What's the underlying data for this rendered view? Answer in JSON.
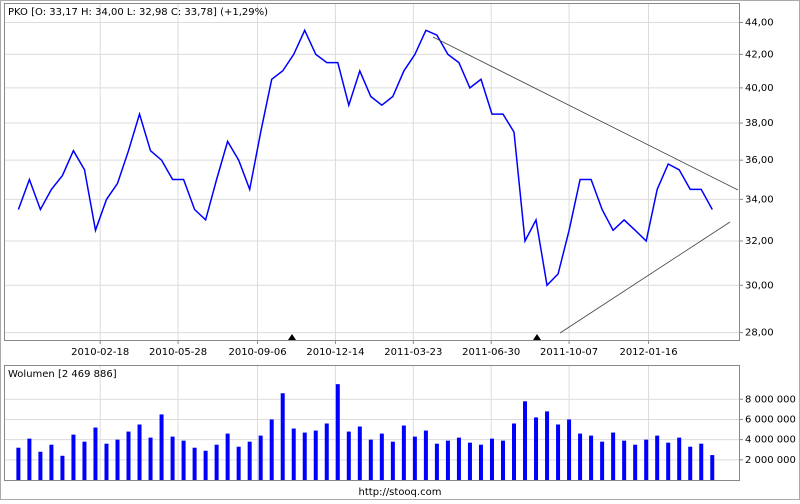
{
  "chart_data": [
    {
      "type": "line",
      "title": "PKO [O: 33,17  H: 34,00  L: 32,98  C: 33,78] (+1,29%)",
      "log_scale": true,
      "grid": true,
      "xlim": [
        "2009-10-20",
        "2012-05-10"
      ],
      "xticks": [
        "2010-02-18",
        "2010-05-28",
        "2010-09-06",
        "2010-12-14",
        "2011-03-23",
        "2011-06-30",
        "2011-10-07",
        "2012-01-16"
      ],
      "ylim": [
        27.7,
        45.2
      ],
      "yticks": [
        {
          "value": 28,
          "label": "28,00"
        },
        {
          "value": 30,
          "label": "30,00"
        },
        {
          "value": 32,
          "label": "32,00"
        },
        {
          "value": 34,
          "label": "34,00"
        },
        {
          "value": 36,
          "label": "36,00"
        },
        {
          "value": 38,
          "label": "38,00"
        },
        {
          "value": 40,
          "label": "40,00"
        },
        {
          "value": 42,
          "label": "42,00"
        },
        {
          "value": 44,
          "label": "44,00"
        }
      ],
      "x": [
        "2009-11-06",
        "2009-11-20",
        "2009-12-04",
        "2009-12-18",
        "2010-01-01",
        "2010-01-15",
        "2010-01-29",
        "2010-02-12",
        "2010-02-26",
        "2010-03-12",
        "2010-03-26",
        "2010-04-09",
        "2010-04-23",
        "2010-05-07",
        "2010-05-21",
        "2010-06-04",
        "2010-06-18",
        "2010-07-02",
        "2010-07-16",
        "2010-07-30",
        "2010-08-13",
        "2010-08-27",
        "2010-09-10",
        "2010-09-24",
        "2010-10-08",
        "2010-10-22",
        "2010-11-05",
        "2010-11-19",
        "2010-12-03",
        "2010-12-17",
        "2010-12-31",
        "2011-01-14",
        "2011-01-28",
        "2011-02-11",
        "2011-02-25",
        "2011-03-11",
        "2011-03-25",
        "2011-04-08",
        "2011-04-22",
        "2011-05-06",
        "2011-05-20",
        "2011-06-03",
        "2011-06-17",
        "2011-07-01",
        "2011-07-15",
        "2011-07-29",
        "2011-08-12",
        "2011-08-26",
        "2011-09-09",
        "2011-09-23",
        "2011-10-07",
        "2011-10-21",
        "2011-11-04",
        "2011-11-18",
        "2011-12-02",
        "2011-12-16",
        "2011-12-30",
        "2012-01-13",
        "2012-01-27",
        "2012-02-10",
        "2012-02-24",
        "2012-03-09",
        "2012-03-23",
        "2012-04-06"
      ],
      "series": [
        {
          "color": "#0000ff",
          "values": [
            33.5,
            35,
            33.5,
            34.5,
            35.2,
            36.5,
            35.5,
            32.5,
            34,
            34.8,
            36.5,
            38.5,
            36.5,
            36,
            35,
            35,
            33.5,
            33,
            35,
            37,
            36,
            34.5,
            37.5,
            40.5,
            41,
            42,
            43.5,
            42,
            41.5,
            41.5,
            39,
            41,
            39.5,
            39,
            39.5,
            41,
            42,
            43.5,
            43.2,
            42,
            41.5,
            40,
            40.5,
            38.5,
            38.5,
            37.5,
            32,
            33,
            30,
            30.5,
            32.5,
            35,
            35,
            33.5,
            32.5,
            33,
            32.5,
            32,
            34.5,
            35.8,
            35.5,
            34.5,
            34.5,
            33.5
          ]
        }
      ]
    },
    {
      "type": "bar",
      "title": "Wolumen [2 469 886]",
      "grid": true,
      "xlim": [
        "2009-10-20",
        "2012-05-10"
      ],
      "xticks": [
        "2010-02-18",
        "2010-05-28",
        "2010-09-06",
        "2010-12-14",
        "2011-03-23",
        "2011-06-30",
        "2011-10-07",
        "2012-01-16"
      ],
      "ylim": [
        0,
        11300000
      ],
      "yticks": [
        {
          "value": 2000000,
          "label": "2 000 000"
        },
        {
          "value": 4000000,
          "label": "4 000 000"
        },
        {
          "value": 6000000,
          "label": "6 000 000"
        },
        {
          "value": 8000000,
          "label": "8 000 000"
        }
      ],
      "x": [
        "2009-11-06",
        "2009-11-20",
        "2009-12-04",
        "2009-12-18",
        "2010-01-01",
        "2010-01-15",
        "2010-01-29",
        "2010-02-12",
        "2010-02-26",
        "2010-03-12",
        "2010-03-26",
        "2010-04-09",
        "2010-04-23",
        "2010-05-07",
        "2010-05-21",
        "2010-06-04",
        "2010-06-18",
        "2010-07-02",
        "2010-07-16",
        "2010-07-30",
        "2010-08-13",
        "2010-08-27",
        "2010-09-10",
        "2010-09-24",
        "2010-10-08",
        "2010-10-22",
        "2010-11-05",
        "2010-11-19",
        "2010-12-03",
        "2010-12-17",
        "2010-12-31",
        "2011-01-14",
        "2011-01-28",
        "2011-02-11",
        "2011-02-25",
        "2011-03-11",
        "2011-03-25",
        "2011-04-08",
        "2011-04-22",
        "2011-05-06",
        "2011-05-20",
        "2011-06-03",
        "2011-06-17",
        "2011-07-01",
        "2011-07-15",
        "2011-07-29",
        "2011-08-12",
        "2011-08-26",
        "2011-09-09",
        "2011-09-23",
        "2011-10-07",
        "2011-10-21",
        "2011-11-04",
        "2011-11-18",
        "2011-12-02",
        "2011-12-16",
        "2011-12-30",
        "2012-01-13",
        "2012-01-27",
        "2012-02-10",
        "2012-02-24",
        "2012-03-09",
        "2012-03-23",
        "2012-04-06"
      ],
      "series": [
        {
          "color": "#0000ff",
          "values": [
            3200000,
            4100000,
            2800000,
            3500000,
            2400000,
            4500000,
            3800000,
            5200000,
            3600000,
            4000000,
            4800000,
            5500000,
            4200000,
            6500000,
            4300000,
            3900000,
            3200000,
            2900000,
            3500000,
            4600000,
            3300000,
            3800000,
            4400000,
            6000000,
            8600000,
            5100000,
            4700000,
            4900000,
            5600000,
            9500000,
            4800000,
            5300000,
            4000000,
            4600000,
            3800000,
            5400000,
            4300000,
            4900000,
            3600000,
            3900000,
            4200000,
            3700000,
            3500000,
            4100000,
            3900000,
            5600000,
            7800000,
            6200000,
            6800000,
            5500000,
            6000000,
            4600000,
            4400000,
            3800000,
            4700000,
            3900000,
            3500000,
            4000000,
            4400000,
            3700000,
            4200000,
            3300000,
            3600000,
            2469886
          ]
        }
      ]
    }
  ],
  "footer": "http://stooq.com"
}
